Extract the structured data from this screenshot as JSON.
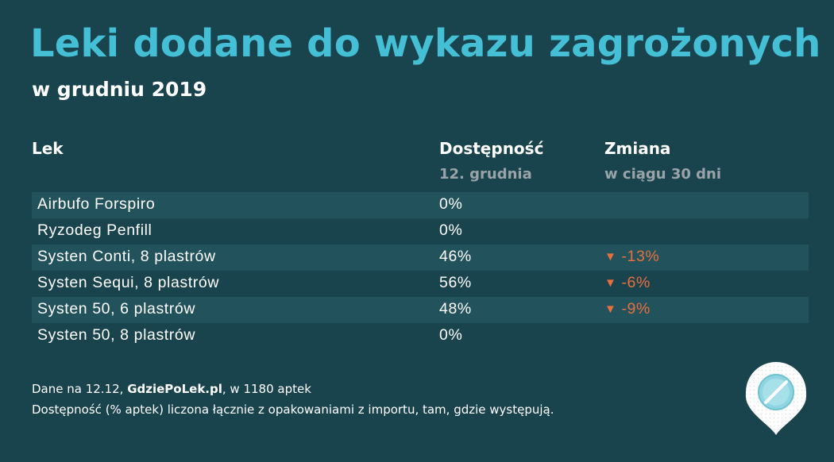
{
  "header": {
    "title": "Leki dodane do wykazu zagrożonych",
    "subtitle": "w grudniu 2019"
  },
  "table": {
    "columns": [
      {
        "label": "Lek",
        "sublabel": ""
      },
      {
        "label": "Dostępność",
        "sublabel": "12. grudnia"
      },
      {
        "label": "Zmiana",
        "sublabel": "w ciągu 30 dni"
      }
    ],
    "rows": [
      {
        "name": "Airbufo Forspiro",
        "availability": "0%",
        "change": ""
      },
      {
        "name": "Ryzodeg Penfill",
        "availability": "0%",
        "change": ""
      },
      {
        "name": "Systen Conti, 8 plastrów",
        "availability": "46%",
        "change": "-13%"
      },
      {
        "name": "Systen Sequi, 8 plastrów",
        "availability": "56%",
        "change": "-6%"
      },
      {
        "name": "Systen 50, 6 plastrów",
        "availability": "48%",
        "change": "-9%"
      },
      {
        "name": "Systen 50, 8 plastrów",
        "availability": "0%",
        "change": ""
      }
    ],
    "change_arrow": "▼"
  },
  "footer": {
    "line1_prefix": "Dane na 12.12, ",
    "line1_source": "GdziePoLek.pl",
    "line1_suffix": ", w 1180 aptek",
    "line2": "Dostępność (% aptek) liczona łącznie z opakowaniami z importu, tam, gdzie występują."
  },
  "logo": {
    "icon": "pill-location-pin-icon"
  },
  "colors": {
    "background": "#1a444d",
    "title": "#45bfd6",
    "sublabel": "#9aa4a8",
    "row_shade": "#22525b",
    "decrease": "#e8703f"
  }
}
